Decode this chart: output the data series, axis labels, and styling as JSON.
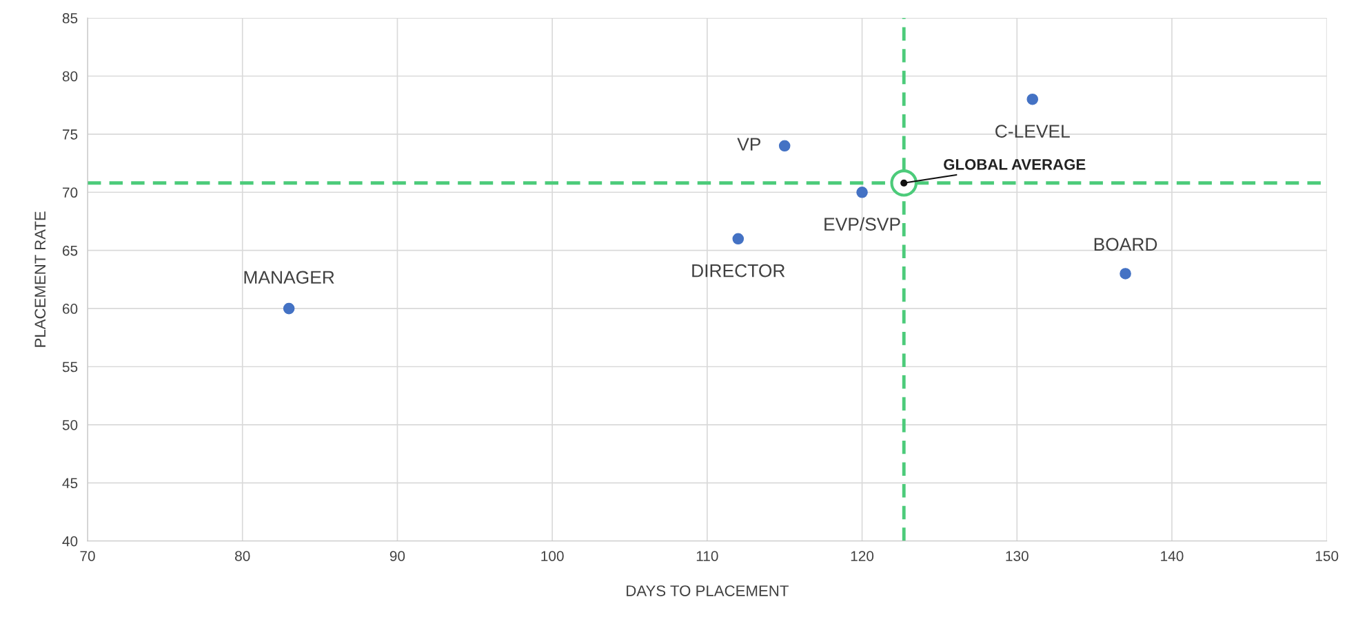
{
  "chart_data": {
    "type": "scatter",
    "xlabel": "DAYS TO PLACEMENT",
    "ylabel": "PLACEMENT RATE",
    "xlim": [
      70,
      150
    ],
    "xticks": [
      70,
      80,
      90,
      100,
      110,
      120,
      130,
      140,
      150
    ],
    "ylim": [
      40,
      85
    ],
    "yticks": [
      40,
      45,
      50,
      55,
      60,
      65,
      70,
      75,
      80,
      85
    ],
    "grid": true,
    "marker": "circle",
    "series": [
      {
        "color": "#4472c4",
        "x": [
          83,
          112,
          115,
          120,
          131,
          137
        ],
        "values": [
          60,
          66,
          74,
          70,
          78,
          63
        ]
      },
      {
        "color": "#4ccb7a",
        "x": [
          122.7
        ],
        "values": [
          70.8
        ]
      }
    ],
    "ref_lines": [
      {
        "axis": "x",
        "value": 122.7,
        "color": "#4ccb7a",
        "line_style": "dashed"
      },
      {
        "axis": "y",
        "value": 70.8,
        "color": "#4ccb7a",
        "line_style": "dashed"
      }
    ],
    "annotations": [
      {
        "text": "MANAGER",
        "x": 83,
        "y": 60
      },
      {
        "text": "DIRECTOR",
        "x": 112,
        "y": 66
      },
      {
        "text": "VP",
        "x": 115,
        "y": 74
      },
      {
        "text": "EVP/SVP",
        "x": 120,
        "y": 70
      },
      {
        "text": "C-LEVEL",
        "x": 131,
        "y": 78
      },
      {
        "text": "BOARD",
        "x": 137,
        "y": 63
      },
      {
        "text": "GLOBAL AVERAGE",
        "x": 122.7,
        "y": 70.8
      }
    ]
  }
}
